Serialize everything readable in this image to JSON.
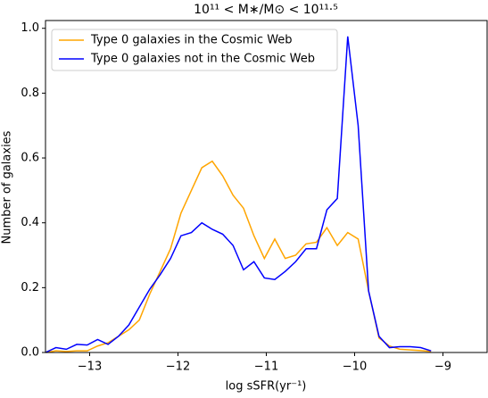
{
  "chart_data": {
    "type": "line",
    "title": "10¹¹ < M∗/M⊙ < 10¹¹·⁵",
    "x_label": "log sSFR(yr⁻¹)",
    "y_label": "Number of galaxies",
    "x": [
      -13.5,
      -13.382,
      -13.264,
      -13.146,
      -13.028,
      -12.91,
      -12.792,
      -12.674,
      -12.556,
      -12.438,
      -12.32,
      -12.202,
      -12.084,
      -11.966,
      -11.848,
      -11.73,
      -11.612,
      -11.494,
      -11.376,
      -11.258,
      -11.14,
      -11.022,
      -10.904,
      -10.786,
      -10.668,
      -10.55,
      -10.432,
      -10.314,
      -10.196,
      -10.078,
      -9.96,
      -9.842,
      -9.724,
      -9.606,
      -9.488,
      -9.37,
      -9.252,
      -9.134
    ],
    "series": [
      {
        "name": "Type 0 galaxies in the Cosmic Web",
        "color": "#ffa500",
        "values": [
          0.0,
          0.005,
          0.003,
          0.005,
          0.005,
          0.02,
          0.03,
          0.05,
          0.07,
          0.1,
          0.18,
          0.25,
          0.32,
          0.43,
          0.5,
          0.57,
          0.59,
          0.545,
          0.485,
          0.445,
          0.36,
          0.29,
          0.35,
          0.29,
          0.3,
          0.335,
          0.34,
          0.385,
          0.33,
          0.37,
          0.35,
          0.19,
          0.045,
          0.02,
          0.01,
          0.008,
          0.006,
          0.003
        ]
      },
      {
        "name": "Type 0 galaxies not in the Cosmic Web",
        "color": "#0000ff",
        "values": [
          0.0,
          0.015,
          0.01,
          0.025,
          0.023,
          0.04,
          0.025,
          0.05,
          0.085,
          0.14,
          0.195,
          0.24,
          0.29,
          0.36,
          0.37,
          0.4,
          0.38,
          0.365,
          0.33,
          0.255,
          0.28,
          0.23,
          0.225,
          0.25,
          0.28,
          0.32,
          0.32,
          0.44,
          0.475,
          0.975,
          0.7,
          0.19,
          0.05,
          0.015,
          0.018,
          0.018,
          0.015,
          0.005
        ]
      }
    ],
    "xlim": [
      -13.5,
      -8.5
    ],
    "xticks": [
      {
        "value": -13,
        "label": "−13"
      },
      {
        "value": -12,
        "label": "−12"
      },
      {
        "value": -11,
        "label": "−11"
      },
      {
        "value": -10,
        "label": "−10"
      },
      {
        "value": -9,
        "label": "−9"
      }
    ],
    "ylim": [
      0,
      1.024
    ],
    "yticks": [
      {
        "value": 0,
        "label": "0.0"
      },
      {
        "value": 0.2,
        "label": "0.2"
      },
      {
        "value": 0.4,
        "label": "0.4"
      },
      {
        "value": 0.6,
        "label": "0.6"
      },
      {
        "value": 0.8,
        "label": "0.8"
      },
      {
        "value": 1.0,
        "label": "1.0"
      }
    ],
    "legend": "upper left"
  }
}
